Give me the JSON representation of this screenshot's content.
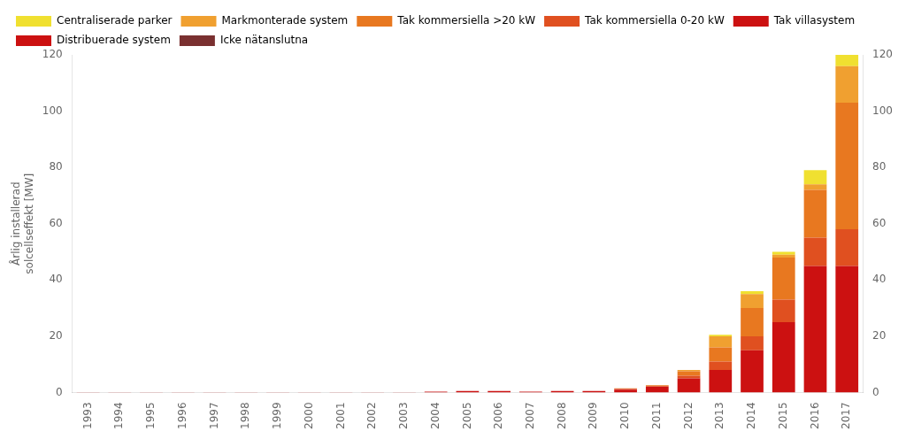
{
  "chart_data": {
    "type": "bar",
    "stacked": true,
    "categories": [
      "1993",
      "1994",
      "1995",
      "1996",
      "1997",
      "1998",
      "1999",
      "2000",
      "2001",
      "2002",
      "2003",
      "2004",
      "2005",
      "2006",
      "2007",
      "2008",
      "2009",
      "2010",
      "2011",
      "2012",
      "2013",
      "2014",
      "2015",
      "2016",
      "2017"
    ],
    "series": [
      {
        "name": "Tak villasystem",
        "color": "#cc1111",
        "values": [
          0.1,
          0.1,
          0.1,
          0.1,
          0.1,
          0.1,
          0.1,
          0.1,
          0.1,
          0.1,
          0.1,
          0.3,
          0.5,
          0.5,
          0.3,
          0.5,
          0.5,
          1.0,
          2.0,
          5.0,
          8.0,
          15.0,
          25.0,
          45.0,
          45.0
        ]
      },
      {
        "name": "Tak kommersiella 0-20 kW",
        "color": "#e05020",
        "values": [
          0.0,
          0.0,
          0.0,
          0.0,
          0.0,
          0.0,
          0.0,
          0.0,
          0.0,
          0.0,
          0.0,
          0.0,
          0.0,
          0.0,
          0.0,
          0.0,
          0.0,
          0.3,
          0.3,
          1.0,
          3.0,
          5.0,
          8.0,
          10.0,
          13.0
        ]
      },
      {
        "name": "Tak kommersiella >20 kW",
        "color": "#e87820",
        "values": [
          0.0,
          0.0,
          0.0,
          0.0,
          0.0,
          0.0,
          0.0,
          0.0,
          0.0,
          0.0,
          0.0,
          0.0,
          0.0,
          0.0,
          0.0,
          0.0,
          0.0,
          0.2,
          0.3,
          1.5,
          5.0,
          10.0,
          15.0,
          17.0,
          45.0
        ]
      },
      {
        "name": "Markmonterade system",
        "color": "#f0a030",
        "values": [
          0.0,
          0.0,
          0.0,
          0.0,
          0.0,
          0.0,
          0.0,
          0.0,
          0.0,
          0.0,
          0.0,
          0.0,
          0.0,
          0.0,
          0.0,
          0.0,
          0.0,
          0.0,
          0.0,
          0.5,
          4.0,
          5.0,
          1.0,
          2.0,
          13.0
        ]
      },
      {
        "name": "Centraliserade parker",
        "color": "#f0e030",
        "values": [
          0.0,
          0.0,
          0.0,
          0.0,
          0.0,
          0.0,
          0.0,
          0.0,
          0.0,
          0.0,
          0.0,
          0.0,
          0.0,
          0.0,
          0.0,
          0.0,
          0.0,
          0.0,
          0.0,
          0.0,
          0.5,
          1.0,
          1.0,
          5.0,
          4.0
        ]
      }
    ],
    "ylabel": "Årlig installerad\nsolcellseffekt [MW]",
    "ylim": [
      0,
      120
    ],
    "yticks": [
      0,
      20,
      40,
      60,
      80,
      100,
      120
    ],
    "y2lim": [
      0,
      120
    ],
    "y2ticks": [
      0,
      20,
      40,
      60,
      80,
      100,
      120
    ],
    "grid": false,
    "legend": "upper left",
    "annotations": [
      {
        "text": "Distribuerade system",
        "color": "#cc1111"
      },
      {
        "text": "Icke nätanslutna",
        "color": "#7a3030"
      }
    ]
  }
}
